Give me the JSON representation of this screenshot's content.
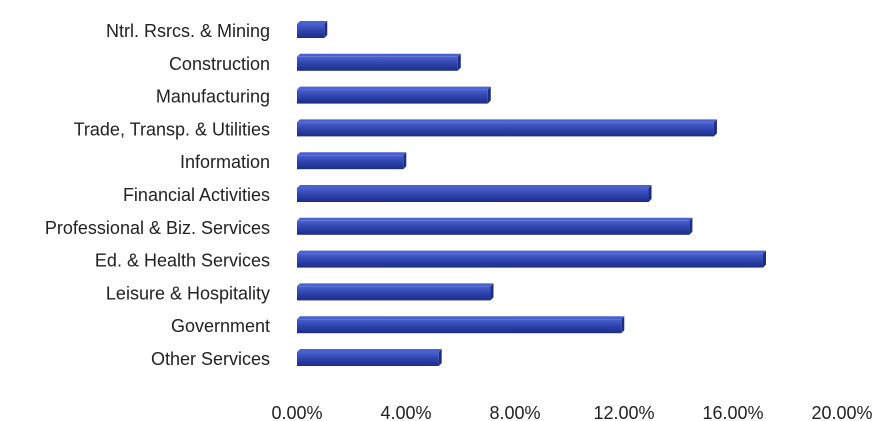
{
  "chart_data": {
    "type": "bar",
    "orientation": "horizontal",
    "title": "",
    "xlabel": "",
    "ylabel": "",
    "categories": [
      "Ntrl. Rsrcs. & Mining",
      "Construction",
      "Manufacturing",
      "Trade, Transp. & Utilities",
      "Information",
      "Financial Activities",
      "Professional & Biz. Services",
      "Ed. & Health Services",
      "Leisure & Hospitality",
      "Government",
      "Other Services"
    ],
    "values": [
      1.0,
      5.9,
      7.0,
      15.3,
      3.9,
      12.9,
      14.4,
      17.1,
      7.1,
      11.9,
      5.2
    ],
    "value_unit": "%",
    "xlim": [
      0,
      20
    ],
    "x_ticks": [
      "0.00%",
      "4.00%",
      "8.00%",
      "12.00%",
      "16.00%",
      "20.00%"
    ],
    "grid": false,
    "legend": "none",
    "bar_color": "#2f45b0",
    "bar_top_color": "#4a62cf",
    "bar_edge_color": "#1c2d86"
  }
}
